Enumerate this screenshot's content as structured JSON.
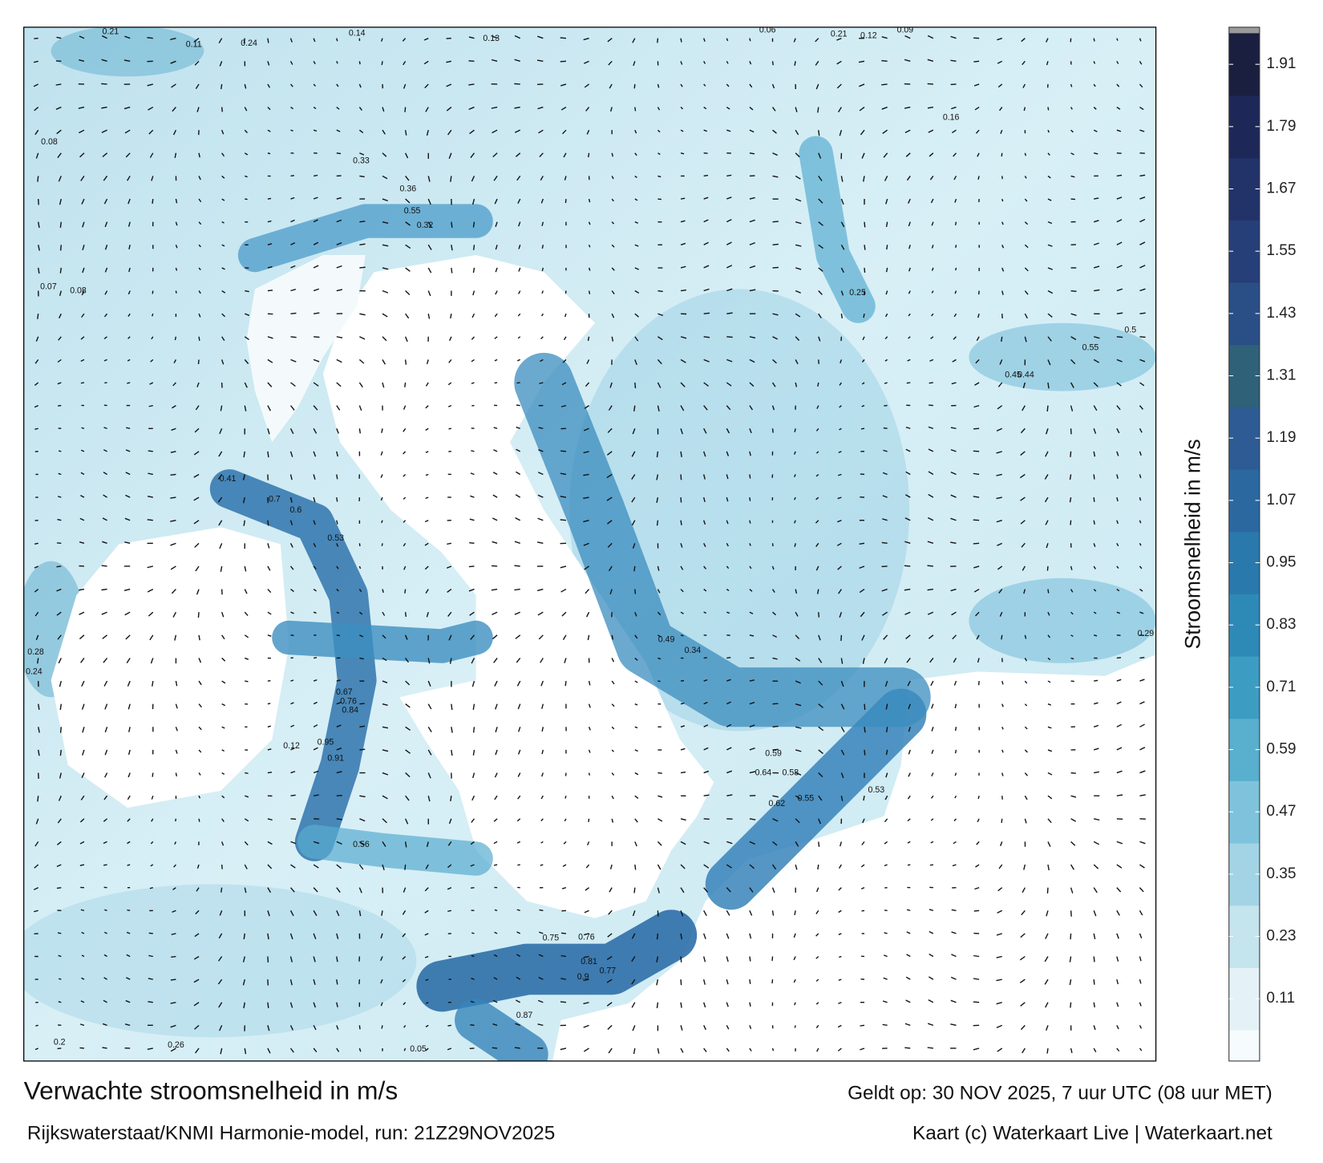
{
  "map": {
    "legend_label": "Stroomsnelheid in m/s",
    "colorbar": {
      "range": [
        -0.01,
        1.97
      ],
      "ticks": [
        0.11,
        0.23,
        0.35,
        0.47,
        0.59,
        0.71,
        0.83,
        0.95,
        1.07,
        1.19,
        1.31,
        1.43,
        1.55,
        1.67,
        1.79,
        1.91
      ],
      "colors": [
        "#e4f2f7",
        "#c4e4ee",
        "#a2d4e5",
        "#7ec3db",
        "#58afce",
        "#3c9cc2",
        "#2d8ab6",
        "#2a79ac",
        "#2c68a0",
        "#2e5b93",
        "#2f6178",
        "#2a4e86",
        "#263f78",
        "#22336a",
        "#1e2858",
        "#1a1f40"
      ]
    },
    "speed_labels": [
      0.21,
      0.11,
      0.24,
      0.14,
      0.13,
      0.08,
      0.33,
      0.36,
      0.55,
      0.32,
      0.07,
      0.08,
      0.7,
      0.6,
      0.41,
      0.53,
      0.67,
      0.76,
      0.84,
      0.95,
      0.91,
      0.12,
      0.56,
      0.75,
      0.76,
      0.81,
      0.77,
      0.9,
      0.87,
      0.28,
      0.24,
      0.49,
      0.34,
      0.59,
      0.64,
      0.58,
      0.62,
      0.55,
      0.53,
      0.45,
      0.44,
      0.55,
      0.5,
      0.29,
      0.06,
      0.21,
      0.12,
      0.09,
      0.25,
      0.16,
      0.05,
      0.26,
      0.2
    ]
  },
  "footer": {
    "title": "Verwachte stroomsnelheid in m/s",
    "valid": "Geldt op: 30 NOV 2025, 7 uur UTC (08 uur MET)",
    "model": "Rijkswaterstaat/KNMI Harmonie-model, run: 21Z29NOV2025",
    "credit": "Kaart (c) Waterkaart Live | Waterkaart.net"
  }
}
